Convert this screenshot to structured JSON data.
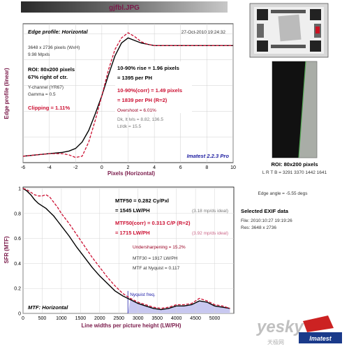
{
  "file_title": "gjfbl.JPG",
  "edge_panel": {
    "box_title": "Edge profile: Horizontal",
    "timestamp": "27-Oct-2010 19:24:32",
    "info_lines": [
      "3648 x 2736 pixels (WxH)",
      "9.98 Mpxls"
    ],
    "roi_line": "ROI: 80x200 pixels",
    "roi_pos": "67% right of ctr.",
    "channel": "Y-channel (YR67)",
    "gamma": "Gamma = 0.5",
    "clipping": "Clipping =  1.11%",
    "rise": "10-90% rise = 1.96 pixels",
    "rise_ph": "= 1395 per PH",
    "rise_corr": "10-90%(corr) = 1.49 pixels",
    "rise_corr_ph": "= 1839 per PH  (R=2)",
    "overshoot": "Overshoot = 6.01%",
    "dk_lt": "Dk, lt lvls = 8.82, 136.5",
    "lt_dk": "Lt/dk = 15.5",
    "version": "Imatest 2.2.3 Pro",
    "ylabel": "Edge profile (linear)",
    "xlabel": "Pixels (Horizontal)"
  },
  "mtf_panel": {
    "mtf50": "MTF50 = 0.282 Cy/Pxl",
    "mtf50_lw": "= 1545 LW/PH",
    "mtf50_ideal": "(3.18 mp/ds ideal)",
    "mtf50c": "MTF50(corr) = 0.313 C/P  (R=2)",
    "mtf50c_lw": "= 1715 LW/PH",
    "mtf50c_ideal": "(3.92 mp/ds ideal)",
    "undersharp": "Undersharpening = 15.2%",
    "mtf30": "MTF30 = 1917 LW/PH",
    "nyq": "MTF at Nyquist = 0.117",
    "nyq_label": "Nyquist freq.",
    "box_title": "MTF: Horizontal",
    "ylabel": "SFR (MTF)",
    "xlabel": "Line widths per picture height (LW/PH)"
  },
  "side": {
    "roi_title": "ROI: 80x200 pixels",
    "roi_lrtb": "L R T B = 3291 3370  1442 1641",
    "edge_angle": "Edge angle = -5.55 degs",
    "exif_title": "Selected EXIF data",
    "exif_file": "File:   2010:10:27 19:19:26",
    "exif_res": "Res:   3648 x 2736",
    "wm_text": "yesky",
    "wm_sub": "天极网",
    "logo_text": "Imatest"
  },
  "colors": {
    "title": "#7a1a4a",
    "corr": "#cc1133",
    "nyquist": "#2020aa",
    "fill": "#c8c8f0"
  },
  "chart_data": [
    {
      "type": "line",
      "title": "Edge profile: Horizontal",
      "xlabel": "Pixels (Horizontal)",
      "ylabel": "Edge profile (linear)",
      "xlim": [
        -6,
        10
      ],
      "xticks": [
        -6,
        -4,
        -2,
        0,
        2,
        4,
        6,
        8,
        10
      ],
      "grid": true,
      "series": [
        {
          "style": "solid",
          "x": [
            -6,
            -5,
            -4,
            -3,
            -2.5,
            -2,
            -1.5,
            -1,
            -0.5,
            0,
            0.5,
            1,
            1.5,
            2,
            2.5,
            3,
            3.5,
            4,
            5,
            6,
            7,
            8,
            9,
            10
          ],
          "y": [
            0.05,
            0.06,
            0.07,
            0.08,
            0.09,
            0.11,
            0.16,
            0.25,
            0.38,
            0.52,
            0.68,
            0.83,
            0.93,
            0.97,
            0.95,
            0.93,
            0.92,
            0.91,
            0.91,
            0.91,
            0.91,
            0.91,
            0.91,
            0.91
          ]
        },
        {
          "style": "dashed",
          "x": [
            -6,
            -5,
            -4,
            -3,
            -2.5,
            -2,
            -1.5,
            -1,
            -0.5,
            0,
            0.5,
            1,
            1.5,
            2,
            2.5,
            3,
            3.5,
            4,
            5,
            6,
            7,
            8,
            9,
            10
          ],
          "y": [
            0.05,
            0.06,
            0.07,
            0.07,
            0.06,
            0.04,
            0.05,
            0.16,
            0.33,
            0.52,
            0.72,
            0.88,
            0.97,
            1.01,
            0.98,
            0.94,
            0.92,
            0.91,
            0.91,
            0.91,
            0.91,
            0.91,
            0.91,
            0.91
          ]
        }
      ]
    },
    {
      "type": "line",
      "title": "MTF: Horizontal",
      "xlabel": "Line widths per picture height (LW/PH)",
      "ylabel": "SFR (MTF)",
      "xlim": [
        0,
        5500
      ],
      "ylim": [
        0,
        1
      ],
      "xticks": [
        0,
        500,
        1000,
        1500,
        2000,
        2500,
        3000,
        3500,
        4000,
        4500,
        5000
      ],
      "yticks": [
        0,
        0.2,
        0.4,
        0.6,
        0.8,
        1
      ],
      "grid": true,
      "nyquist_x": 2736,
      "series": [
        {
          "style": "solid",
          "x": [
            0,
            100,
            200,
            300,
            400,
            500,
            600,
            700,
            800,
            900,
            1000,
            1200,
            1400,
            1600,
            1800,
            2000,
            2200,
            2400,
            2600,
            2800,
            3000,
            3200,
            3400,
            3600,
            3800,
            4000,
            4200,
            4400,
            4600,
            4800,
            5000,
            5200,
            5400
          ],
          "y": [
            1.0,
            0.98,
            0.95,
            0.91,
            0.88,
            0.86,
            0.84,
            0.81,
            0.78,
            0.74,
            0.7,
            0.62,
            0.53,
            0.45,
            0.37,
            0.3,
            0.24,
            0.18,
            0.14,
            0.11,
            0.08,
            0.06,
            0.04,
            0.03,
            0.04,
            0.06,
            0.06,
            0.07,
            0.1,
            0.09,
            0.06,
            0.05,
            0.04
          ]
        },
        {
          "style": "dashed",
          "x": [
            0,
            100,
            200,
            300,
            400,
            500,
            600,
            700,
            800,
            900,
            1000,
            1200,
            1400,
            1600,
            1800,
            2000,
            2200,
            2400,
            2600,
            2800,
            3000,
            3200,
            3400,
            3600,
            3800,
            4000,
            4200,
            4400,
            4600,
            4800,
            5000,
            5200,
            5400
          ],
          "y": [
            1.0,
            0.99,
            0.97,
            0.95,
            0.94,
            0.94,
            0.95,
            0.93,
            0.89,
            0.85,
            0.8,
            0.72,
            0.63,
            0.54,
            0.45,
            0.37,
            0.29,
            0.22,
            0.16,
            0.12,
            0.09,
            0.07,
            0.05,
            0.04,
            0.05,
            0.07,
            0.07,
            0.08,
            0.12,
            0.1,
            0.07,
            0.06,
            0.04
          ]
        }
      ]
    }
  ]
}
